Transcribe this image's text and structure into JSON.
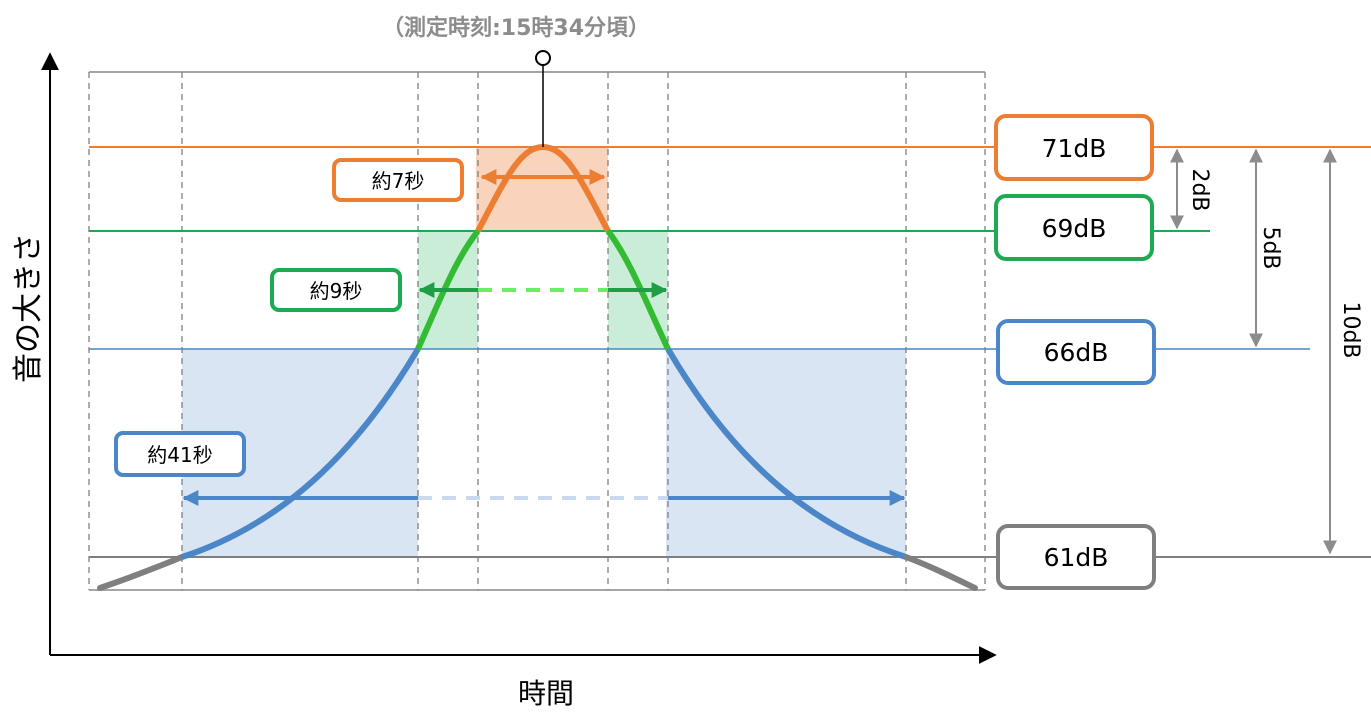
{
  "texts": {
    "measure_time": "（測定時刻:15時34分頃）",
    "y_axis_label": "音の大きさ",
    "x_axis_label": "時間"
  },
  "levels": [
    {
      "key": "l71",
      "label": "71dB",
      "color": "#ED7D31"
    },
    {
      "key": "l69",
      "label": "69dB",
      "color": "#1EAA50"
    },
    {
      "key": "l66",
      "label": "66dB",
      "color": "#4A86C8"
    },
    {
      "key": "l61",
      "label": "61dB",
      "color": "#7F7F7F"
    }
  ],
  "durations": [
    {
      "label": "約7秒",
      "color": "#ED7D31"
    },
    {
      "label": "約9秒",
      "color": "#1EAA50"
    },
    {
      "label": "約41秒",
      "color": "#4A86C8"
    }
  ],
  "differences": [
    "2dB",
    "5dB",
    "10dB"
  ],
  "colors": {
    "axis": "#000000",
    "grid": "#808080",
    "orange": "#ED7D31",
    "green": "#1EAA50",
    "green_bright": "#33CC33",
    "green_dash": "#66EE66",
    "blue": "#4A86C8",
    "blue_dash": "#C9DAEE",
    "gray": "#7F7F7F",
    "fill_orange": "#F9D3BC",
    "fill_green": "#C9EDD6",
    "fill_blue": "#D9E5F3"
  }
}
